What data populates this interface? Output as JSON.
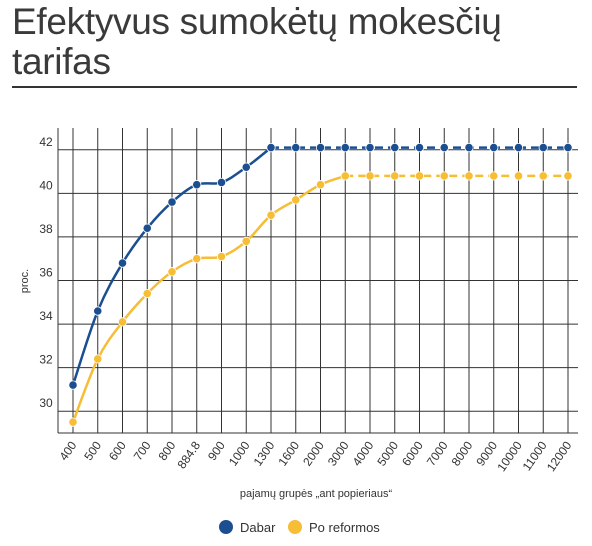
{
  "title": "Efektyvus sumokėtų mokesčių tarifas",
  "chart_data": {
    "type": "line",
    "title": "Efektyvus sumokėtų mokesčių tarifas",
    "xlabel": "pajamų grupės „ant popieriaus“",
    "ylabel": "proc.",
    "categories": [
      "400",
      "500",
      "600",
      "700",
      "800",
      "884.8",
      "900",
      "1000",
      "1300",
      "1600",
      "2000",
      "3000",
      "4000",
      "5000",
      "6000",
      "7000",
      "8000",
      "9000",
      "10000",
      "11000",
      "12000"
    ],
    "yticks": [
      "30",
      "32",
      "34",
      "36",
      "38",
      "40",
      "42"
    ],
    "ylim": [
      29.0,
      43.0
    ],
    "grid": true,
    "legend_position": "bottom",
    "series": [
      {
        "name": "Dabar",
        "color": "#1b4f91",
        "dashed_from_index": 8,
        "values": [
          31.2,
          34.6,
          36.8,
          38.4,
          39.6,
          40.4,
          40.5,
          41.2,
          42.1,
          42.1,
          42.1,
          42.1,
          42.1,
          42.1,
          42.1,
          42.1,
          42.1,
          42.1,
          42.1,
          42.1,
          42.1
        ]
      },
      {
        "name": "Po reformos",
        "color": "#f6bd35",
        "dashed_from_index": 11,
        "values": [
          29.5,
          32.4,
          34.1,
          35.4,
          36.4,
          37.0,
          37.1,
          37.8,
          39.0,
          39.7,
          40.4,
          40.8,
          40.8,
          40.8,
          40.8,
          40.8,
          40.8,
          40.8,
          40.8,
          40.8,
          40.8
        ]
      }
    ]
  }
}
